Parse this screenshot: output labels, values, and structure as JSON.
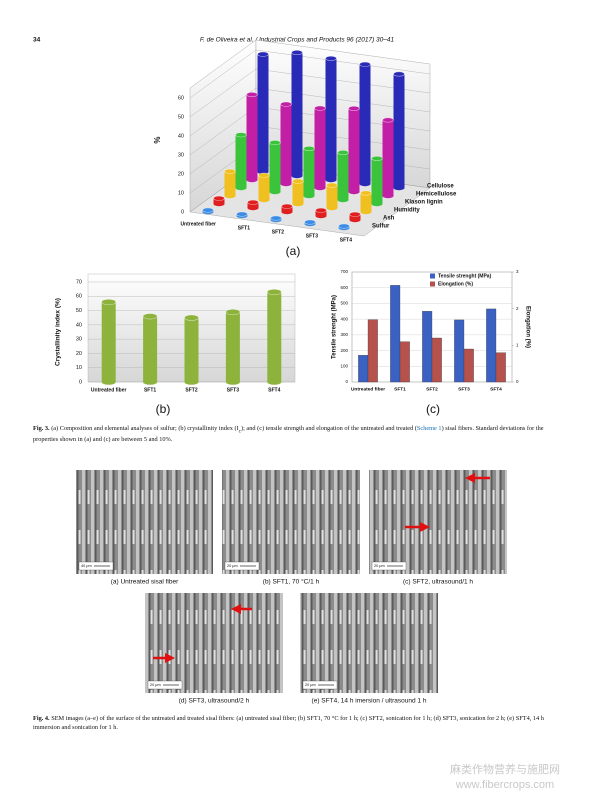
{
  "header": {
    "page": "34",
    "citation": "F. de Oliveira et al. / Industrial Crops and Products 96 (2017) 30–41"
  },
  "chart_data": [
    {
      "type": "bar3d",
      "panel": "(a)",
      "ylabel": "%",
      "categories": [
        "Untreated fiber",
        "SFT1",
        "SFT2",
        "SFT3",
        "SFT4"
      ],
      "series": [
        {
          "name": "Cellulose",
          "color": "#2a2ab8",
          "values": [
            62,
            65,
            64,
            63,
            60
          ]
        },
        {
          "name": "Hemicellulose",
          "color": "#c21fa6",
          "values": [
            45,
            42,
            42,
            44,
            40
          ]
        },
        {
          "name": "Klason lignin",
          "color": "#3cc33c",
          "values": [
            28,
            26,
            25,
            25,
            24
          ]
        },
        {
          "name": "Humidity",
          "color": "#f0c020",
          "values": [
            13,
            13,
            12,
            12,
            10
          ]
        },
        {
          "name": "Ash",
          "color": "#e02020",
          "values": [
            3,
            3,
            3,
            3,
            3
          ]
        },
        {
          "name": "Sulfur",
          "color": "#3c8ce6",
          "values": [
            1,
            1,
            1,
            1,
            1
          ]
        }
      ],
      "ylim": [
        0,
        60
      ],
      "yticks": [
        0,
        10,
        20,
        30,
        40,
        50,
        60
      ],
      "grid": true
    },
    {
      "type": "bar",
      "panel": "(b)",
      "ylabel": "Crystallinity index (%)",
      "categories": [
        "Untreated fiber",
        "SFT1",
        "SFT2",
        "SFT3",
        "SFT4"
      ],
      "values": [
        56,
        46,
        45,
        49,
        63
      ],
      "color": "#8db33c",
      "ylim": [
        0,
        70
      ],
      "yticks": [
        0,
        10,
        20,
        30,
        40,
        50,
        60,
        70
      ],
      "grid": true
    },
    {
      "type": "dualbar",
      "panel": "(c)",
      "ylabel": "Tensile strenght (MPa)",
      "y2label": "Elongation (%)",
      "categories": [
        "Untreated fiber",
        "SFT1",
        "SFT2",
        "SFT3",
        "SFT4"
      ],
      "series": [
        {
          "name": "Tensile strenght (MPa)",
          "color": "#3b62c2",
          "values": [
            170,
            615,
            450,
            395,
            465
          ]
        },
        {
          "name": "Elongation (%)",
          "color": "#b5524e",
          "values": [
            1.7,
            1.1,
            1.2,
            0.9,
            0.8
          ],
          "axis": "y2"
        }
      ],
      "ylim": [
        0,
        700
      ],
      "yticks": [
        0,
        100,
        200,
        300,
        400,
        500,
        600,
        700
      ],
      "y2lim": [
        0,
        3
      ],
      "y2ticks": [
        0,
        1,
        2,
        3
      ],
      "grid": true,
      "legend": "top-left"
    }
  ],
  "figure3_caption": {
    "label": "Fig. 3.",
    "text_1": "(a) Composition and elemental analyses of sulfur; (b) crystallinity index (I",
    "subscript": "c",
    "text_2": "); and (c) tensile strength and elongation of the untreated and treated (",
    "link": "Scheme 1",
    "text_3": ") sisal fibers. Standard deviations for the properties shown in (a) and (c) are between 5 and 10%."
  },
  "figure4": {
    "panels": [
      {
        "label": "(a) Untreated sisal fiber",
        "scale": "40 μm"
      },
      {
        "label": "(b) SFT1, 70 °C/1 h",
        "scale": "20 μm"
      },
      {
        "label": "(c) SFT2, ultrasound/1 h",
        "scale": "20 μm"
      },
      {
        "label": "(d) SFT3, ultrasound/2 h",
        "scale": "20 μm"
      },
      {
        "label": "(e) SFT4, 14 h imersion / ultrasound 1 h",
        "scale": "20 μm"
      }
    ],
    "caption": {
      "label": "Fig. 4.",
      "text": "SEM images (a–e) of the surface of the untreated and treated sisal fibers: (a) untreated sisal fiber; (b) SFT1, 70 °C for 1 h; (c) SFT2, sonication for 1 h; (d) SFT3, sonication for 2 h; (e) SFT4, 14 h immersion and sonication for 1 h."
    }
  },
  "watermark": {
    "name": "麻类作物营养与施肥网",
    "url": "www.fibercrops.com"
  }
}
